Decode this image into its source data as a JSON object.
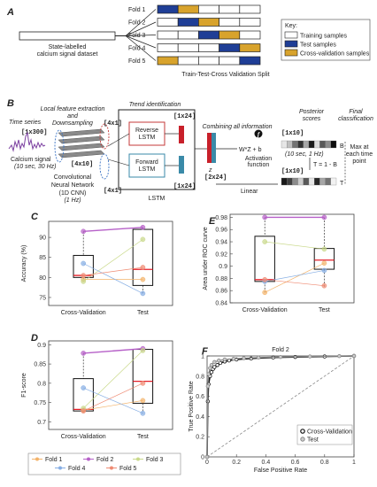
{
  "figure": {
    "panel_a": {
      "letter": "A",
      "dataset_label_1": "State-labelled",
      "dataset_label_2": "calcium signal dataset",
      "folds": [
        {
          "label": "Fold 1",
          "cells": [
            "test",
            "cv",
            "tr",
            "tr",
            "tr"
          ]
        },
        {
          "label": "Fold 2",
          "cells": [
            "tr",
            "test",
            "cv",
            "tr",
            "tr"
          ]
        },
        {
          "label": "Fold 3",
          "cells": [
            "tr",
            "tr",
            "test",
            "cv",
            "tr"
          ]
        },
        {
          "label": "Fold 4",
          "cells": [
            "tr",
            "tr",
            "tr",
            "test",
            "cv"
          ]
        },
        {
          "label": "Fold 5",
          "cells": [
            "cv",
            "tr",
            "tr",
            "tr",
            "test"
          ]
        }
      ],
      "split_title": "Train-Test-Cross Validation Split",
      "key_title": "Key:",
      "key_items": [
        {
          "label": "Training samples",
          "color": "#ffffff"
        },
        {
          "label": "Test samples",
          "color": "#1f3e96"
        },
        {
          "label": "Cross-validation samples",
          "color": "#d8a32c"
        }
      ]
    },
    "panel_b": {
      "letter": "B",
      "time_series": "Time series",
      "dim_input": "[1x300]",
      "calcium_signal": "Calcium signal",
      "calcium_rate": "(10 sec, 30 Hz)",
      "local_feature_1": "Local feature extraction",
      "local_feature_2": "and",
      "local_feature_3": "Downsampling",
      "dim_4x1_top": "[4x1]",
      "dim_4x10": "[4x10]",
      "dim_4x1_bottom": "[4x1]",
      "cnn_1": "Convolutional",
      "cnn_2": "Neural Network",
      "cnn_3": "(1D CNN)",
      "cnn_4": "(1 Hz)",
      "trend": "Trend identification",
      "dim_1x24_top": "[1x24]",
      "dim_1x24_bottom": "[1x24]",
      "reverse_1": "Reverse",
      "reverse_2": "LSTM",
      "forward_1": "Forward",
      "forward_2": "LSTM",
      "lstm": "LSTM",
      "combining": "Combining all information",
      "z": "z",
      "dim_2x24": "[2x24]",
      "formula": "W*Z + b",
      "activation_1": "Activation",
      "activation_2": "function",
      "linear": "Linear",
      "posterior": "Posterior",
      "scores": "scores",
      "dim_1x10_top": "[1x10]",
      "rate_1hz": "(10 sec, 1 Hz)",
      "b_label": "B",
      "t_label": "T",
      "t_formula": "T = 1 - B",
      "dim_1x10_bottom": "[1x10]",
      "final_1": "Final",
      "final_2": "classification",
      "max_1": "Max at",
      "max_2": "each time",
      "max_3": "point",
      "f_glyph": "f"
    },
    "legend": {
      "items": [
        {
          "label": "Fold 1",
          "color": "#f3b36a"
        },
        {
          "label": "Fold 2",
          "color": "#b660c8"
        },
        {
          "label": "Fold 3",
          "color": "#c9d98a"
        },
        {
          "label": "Fold 4",
          "color": "#86aee4"
        },
        {
          "label": "Fold 5",
          "color": "#ef8a72"
        }
      ]
    },
    "panel_f": {
      "letter": "F",
      "title": "Fold 2",
      "legend_cv": "Cross-Validation",
      "legend_test": "Test"
    }
  },
  "chart_data": [
    {
      "id": "C",
      "type": "box",
      "categories": [
        "Cross-Validation",
        "Test"
      ],
      "ylabel": "Accuracy (%)",
      "ylim": [
        73,
        94
      ],
      "yticks": [
        75,
        80,
        85,
        90
      ],
      "ytick_labels": [
        "75",
        "80",
        "85",
        "90"
      ],
      "boxes": [
        {
          "q1": 80,
          "median": 80.5,
          "q3": 85.5,
          "min": 79,
          "max": 91.5
        },
        {
          "q1": 78,
          "median": 82,
          "q3": 92,
          "min": 76,
          "max": 92.5
        }
      ],
      "series": [
        {
          "name": "Fold 1",
          "values": [
            79.5,
            79.5
          ]
        },
        {
          "name": "Fold 2",
          "values": [
            91.5,
            92.5
          ]
        },
        {
          "name": "Fold 3",
          "values": [
            79,
            89.5
          ]
        },
        {
          "name": "Fold 4",
          "values": [
            83.5,
            76
          ]
        },
        {
          "name": "Fold 5",
          "values": [
            80.5,
            82.5
          ]
        }
      ]
    },
    {
      "id": "E",
      "type": "box",
      "categories": [
        "Cross-Validation",
        "Test"
      ],
      "ylabel": "Area under ROC curve",
      "ylim": [
        0.84,
        0.985
      ],
      "yticks": [
        0.84,
        0.86,
        0.88,
        0.9,
        0.92,
        0.94,
        0.96,
        0.98
      ],
      "ytick_labels": [
        "0.84",
        "0.86",
        "0.88",
        "0.9",
        "0.92",
        "0.94",
        "0.96",
        "0.98"
      ],
      "boxes": [
        {
          "q1": 0.875,
          "median": 0.878,
          "q3": 0.949,
          "min": 0.855,
          "max": 0.98
        },
        {
          "q1": 0.895,
          "median": 0.91,
          "q3": 0.929,
          "min": 0.865,
          "max": 0.98
        }
      ],
      "series": [
        {
          "name": "Fold 1",
          "values": [
            0.857,
            0.905
          ]
        },
        {
          "name": "Fold 2",
          "values": [
            0.98,
            0.98
          ]
        },
        {
          "name": "Fold 3",
          "values": [
            0.94,
            0.928
          ]
        },
        {
          "name": "Fold 4",
          "values": [
            0.875,
            0.893
          ]
        },
        {
          "name": "Fold 5",
          "values": [
            0.878,
            0.868
          ]
        }
      ]
    },
    {
      "id": "D",
      "type": "box",
      "categories": [
        "Cross-Validation",
        "Test"
      ],
      "ylabel": "F1-score",
      "ylim": [
        0.68,
        0.91
      ],
      "yticks": [
        0.7,
        0.75,
        0.8,
        0.85,
        0.9
      ],
      "ytick_labels": [
        "0.7",
        "0.75",
        "0.8",
        "0.85",
        "0.9"
      ],
      "boxes": [
        {
          "q1": 0.728,
          "median": 0.732,
          "q3": 0.812,
          "min": 0.725,
          "max": 0.878
        },
        {
          "q1": 0.748,
          "median": 0.805,
          "q3": 0.888,
          "min": 0.722,
          "max": 0.89
        }
      ],
      "series": [
        {
          "name": "Fold 1",
          "values": [
            0.73,
            0.755
          ]
        },
        {
          "name": "Fold 2",
          "values": [
            0.878,
            0.89
          ]
        },
        {
          "name": "Fold 3",
          "values": [
            0.735,
            0.885
          ]
        },
        {
          "name": "Fold 4",
          "values": [
            0.788,
            0.722
          ]
        },
        {
          "name": "Fold 5",
          "values": [
            0.728,
            0.8
          ]
        }
      ]
    },
    {
      "id": "F",
      "type": "line",
      "title": "Fold 2",
      "xlabel": "False Positive Rate",
      "ylabel": "True Positive Rate",
      "xlim": [
        0,
        1
      ],
      "ylim": [
        0,
        1
      ],
      "xticks": [
        0,
        0.2,
        0.4,
        0.6,
        0.8,
        1
      ],
      "xtick_labels": [
        "0",
        "0.2",
        "0.4",
        "0.6",
        "0.8",
        "1"
      ],
      "yticks": [
        0,
        0.2,
        0.4,
        0.6,
        0.8,
        1
      ],
      "ytick_labels": [
        "0",
        "0.2",
        "0.4",
        "0.6",
        "0.8",
        "1"
      ],
      "series": [
        {
          "name": "Cross-Validation",
          "color": "#111111",
          "x": [
            0,
            0.005,
            0.01,
            0.02,
            0.03,
            0.04,
            0.05,
            0.07,
            0.09,
            0.12,
            0.15,
            0.2,
            0.3,
            0.45,
            0.6,
            0.8,
            1
          ],
          "y": [
            0,
            0.55,
            0.72,
            0.8,
            0.84,
            0.87,
            0.89,
            0.91,
            0.93,
            0.945,
            0.955,
            0.965,
            0.975,
            0.985,
            0.99,
            0.995,
            1
          ]
        },
        {
          "name": "Test",
          "color": "#888888",
          "x": [
            0,
            0.005,
            0.01,
            0.02,
            0.03,
            0.05,
            0.08,
            0.12,
            0.18,
            0.25,
            0.35,
            0.5,
            0.7,
            0.9,
            1
          ],
          "y": [
            0,
            0.7,
            0.82,
            0.88,
            0.91,
            0.94,
            0.955,
            0.965,
            0.972,
            0.978,
            0.984,
            0.99,
            0.995,
            0.998,
            1
          ]
        }
      ]
    }
  ]
}
